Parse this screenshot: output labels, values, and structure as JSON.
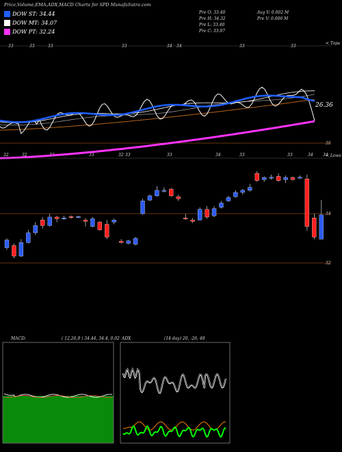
{
  "header": {
    "title": "Price,Volume,EMA,ADX,MACD Charts for SPD",
    "site": "MunafaSutra.com",
    "prev_open": "Pre  O: 33.40",
    "prev_high": "Pre  H: 34.32",
    "prev_low": "Pre  L: 33.40",
    "prev_close": "Pre  C: 33.97",
    "avg_volume": "Avg V: 0.002  M",
    "prev_volume": "Pre  V: 0.006  M"
  },
  "legend": [
    {
      "label": "DOW ST: 34.44",
      "color": "#1f5fff"
    },
    {
      "label": "DOW MT: 34.07",
      "color": "#ffffff"
    },
    {
      "label": "DOW PT: 32.24",
      "color": "#ff33ff"
    }
  ],
  "upper_panel": {
    "top_label": "< Tops",
    "price_label": "26.36",
    "base_label": "36",
    "top_ticks": [
      "33",
      "33",
      "33",
      "33",
      "34",
      "34",
      "33",
      "33"
    ],
    "bottom_ticks": [
      "32",
      "32",
      "32",
      "33",
      "32",
      "33",
      "33",
      "34",
      "33",
      "33",
      "34",
      "34"
    ]
  },
  "candle_panel": {
    "lows_label": "< Lows",
    "level_label_upper": "34",
    "level_label_lower": "32"
  },
  "macd_panel": {
    "title": "MACD:",
    "params": "( 12,26,9 ) 34.44, 34.4, 0.02"
  },
  "adx_panel": {
    "title": "ADX",
    "params": "(14  day) 20,  -26,  49"
  },
  "colors": {
    "up": "#2d5cf0",
    "down": "#ff2020",
    "level": "#8b4513",
    "macd_bg": "#0a8a0a",
    "adx_plus": "#00ff00",
    "adx_minus": "#ff7f00"
  },
  "chart_data": {
    "type": "candlestick",
    "candles": [
      {
        "o": 33.2,
        "h": 33.42,
        "l": 33.15,
        "c": 33.38
      },
      {
        "o": 33.25,
        "h": 33.3,
        "l": 32.95,
        "c": 33.0
      },
      {
        "o": 33.0,
        "h": 33.4,
        "l": 32.98,
        "c": 33.32
      },
      {
        "o": 33.32,
        "h": 33.62,
        "l": 33.3,
        "c": 33.55
      },
      {
        "o": 33.55,
        "h": 33.8,
        "l": 33.5,
        "c": 33.72
      },
      {
        "o": 33.85,
        "h": 33.92,
        "l": 33.65,
        "c": 33.72
      },
      {
        "o": 33.72,
        "h": 34.0,
        "l": 33.7,
        "c": 33.92
      },
      {
        "o": 33.92,
        "h": 33.95,
        "l": 33.8,
        "c": 33.88
      },
      {
        "o": 33.88,
        "h": 33.95,
        "l": 33.85,
        "c": 33.9
      },
      {
        "o": 33.93,
        "h": 33.96,
        "l": 33.88,
        "c": 33.92
      },
      {
        "o": 33.92,
        "h": 33.95,
        "l": 33.9,
        "c": 33.93
      },
      {
        "o": 33.85,
        "h": 33.9,
        "l": 33.7,
        "c": 33.82
      },
      {
        "o": 33.7,
        "h": 33.92,
        "l": 33.68,
        "c": 33.88
      },
      {
        "o": 33.8,
        "h": 33.82,
        "l": 33.6,
        "c": 33.62
      },
      {
        "o": 33.75,
        "h": 33.85,
        "l": 33.4,
        "c": 33.45
      },
      {
        "o": 33.8,
        "h": 33.88,
        "l": 33.75,
        "c": 33.85
      },
      {
        "o": 33.35,
        "h": 33.4,
        "l": 33.3,
        "c": 33.32
      },
      {
        "o": 33.3,
        "h": 33.38,
        "l": 33.28,
        "c": 33.36
      },
      {
        "o": 33.28,
        "h": 33.45,
        "l": 33.25,
        "c": 33.42
      },
      {
        "o": 34.0,
        "h": 34.35,
        "l": 33.98,
        "c": 34.3
      },
      {
        "o": 34.32,
        "h": 34.45,
        "l": 34.3,
        "c": 34.42
      },
      {
        "o": 34.42,
        "h": 34.65,
        "l": 34.4,
        "c": 34.55
      },
      {
        "o": 34.55,
        "h": 34.62,
        "l": 34.5,
        "c": 34.55
      },
      {
        "o": 34.58,
        "h": 34.6,
        "l": 34.4,
        "c": 34.42
      },
      {
        "o": 34.4,
        "h": 34.45,
        "l": 34.3,
        "c": 34.35
      },
      {
        "o": 33.9,
        "h": 34.0,
        "l": 33.85,
        "c": 33.88
      },
      {
        "o": 33.85,
        "h": 33.9,
        "l": 33.78,
        "c": 33.82
      },
      {
        "o": 33.85,
        "h": 34.15,
        "l": 33.84,
        "c": 34.1
      },
      {
        "o": 34.1,
        "h": 34.18,
        "l": 33.88,
        "c": 33.92
      },
      {
        "o": 33.95,
        "h": 34.18,
        "l": 33.92,
        "c": 34.12
      },
      {
        "o": 34.15,
        "h": 34.3,
        "l": 34.12,
        "c": 34.25
      },
      {
        "o": 34.3,
        "h": 34.42,
        "l": 34.28,
        "c": 34.38
      },
      {
        "o": 34.4,
        "h": 34.55,
        "l": 34.38,
        "c": 34.5
      },
      {
        "o": 34.5,
        "h": 34.58,
        "l": 34.45,
        "c": 34.55
      },
      {
        "o": 34.55,
        "h": 34.7,
        "l": 34.52,
        "c": 34.62
      },
      {
        "o": 34.95,
        "h": 35.0,
        "l": 34.75,
        "c": 34.78
      },
      {
        "o": 34.8,
        "h": 34.88,
        "l": 34.75,
        "c": 34.85
      },
      {
        "o": 34.85,
        "h": 34.92,
        "l": 34.8,
        "c": 34.86
      },
      {
        "o": 34.88,
        "h": 34.95,
        "l": 34.75,
        "c": 34.78
      },
      {
        "o": 34.8,
        "h": 34.9,
        "l": 34.72,
        "c": 34.85
      },
      {
        "o": 34.85,
        "h": 34.88,
        "l": 34.78,
        "c": 34.8
      },
      {
        "o": 34.85,
        "h": 34.9,
        "l": 34.82,
        "c": 34.86
      },
      {
        "o": 34.82,
        "h": 34.92,
        "l": 33.6,
        "c": 33.7
      },
      {
        "o": 33.9,
        "h": 34.0,
        "l": 33.4,
        "c": 33.45
      },
      {
        "o": 33.4,
        "h": 34.32,
        "l": 33.4,
        "c": 33.97
      }
    ]
  }
}
